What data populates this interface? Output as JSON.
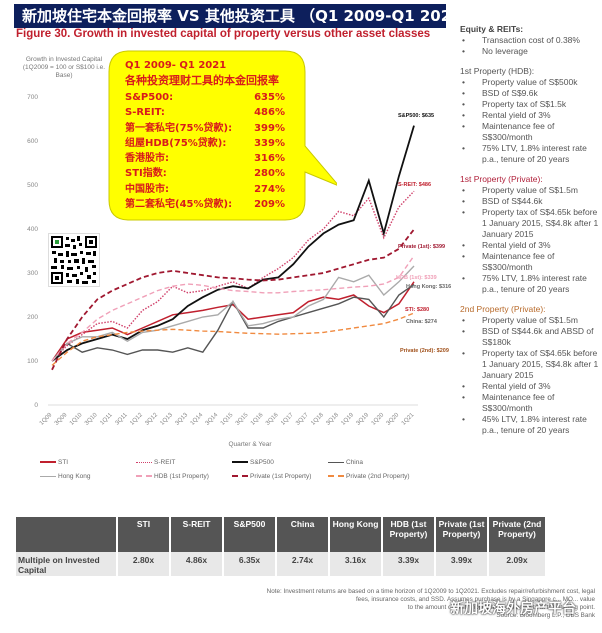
{
  "banner": {
    "title": "新加坡住宅本金回报率 VS 其他投资工具 （Q1 2009-Q1 2021）"
  },
  "figure": {
    "title": "Figure 30. Growth in invested capital of property versus other asset classes"
  },
  "callout": {
    "period": "Q1 2009- Q1 2021",
    "subtitle": "各种投资理财工具的本金回报率",
    "rows": [
      {
        "label": "S&P500:",
        "value": "635%"
      },
      {
        "label": "S-REIT:",
        "value": "486%"
      },
      {
        "label": "第一套私宅(75%贷款):",
        "value": "399%"
      },
      {
        "label": "组屋HDB(75%贷款):",
        "value": "339%"
      },
      {
        "label": "香港股市:",
        "value": "316%"
      },
      {
        "label": "STI指数:",
        "value": "280%"
      },
      {
        "label": "中国股市:",
        "value": "274%"
      },
      {
        "label": "第二套私宅(45%贷款):",
        "value": "209%"
      }
    ],
    "bg_color": "#ffff00",
    "text_color": "#d81b1b"
  },
  "chart_data": {
    "type": "line",
    "title": "Figure 30. Growth in invested capital of property versus other asset classes",
    "ylabel": "Growth in Invested Capital (1Q2009 = 100 or S$100 i.e. Base)",
    "xlabel": "Quarter & Year",
    "ylim": [
      0,
      700
    ],
    "yticks": [
      0,
      100,
      200,
      300,
      400,
      500,
      600,
      700
    ],
    "grid": false,
    "legend_position": "bottom",
    "x": [
      "1Q09",
      "3Q09",
      "1Q10",
      "3Q10",
      "1Q11",
      "3Q11",
      "1Q12",
      "3Q12",
      "1Q13",
      "3Q13",
      "1Q14",
      "3Q14",
      "1Q15",
      "3Q15",
      "1Q16",
      "3Q16",
      "1Q17",
      "3Q17",
      "1Q18",
      "3Q18",
      "1Q19",
      "3Q19",
      "1Q20",
      "3Q20",
      "1Q21"
    ],
    "series": [
      {
        "name": "STI",
        "color": "#c0202e",
        "style": "solid",
        "end_label": "STI: $280",
        "values": [
          100,
          150,
          165,
          170,
          175,
          160,
          175,
          190,
          205,
          210,
          215,
          222,
          228,
          195,
          200,
          205,
          210,
          235,
          245,
          240,
          250,
          225,
          210,
          230,
          280
        ]
      },
      {
        "name": "S-REIT",
        "color": "#d0406a",
        "style": "dotted",
        "end_label": "S-REIT: $486",
        "values": [
          100,
          135,
          160,
          185,
          190,
          175,
          215,
          235,
          270,
          255,
          260,
          270,
          280,
          265,
          290,
          310,
          335,
          375,
          400,
          440,
          430,
          470,
          380,
          450,
          486
        ]
      },
      {
        "name": "S&P500",
        "color": "#111111",
        "style": "solid",
        "end_label": "S&P500: $635",
        "values": [
          100,
          125,
          140,
          150,
          160,
          150,
          170,
          180,
          195,
          225,
          245,
          262,
          270,
          265,
          285,
          290,
          320,
          360,
          390,
          410,
          420,
          510,
          390,
          520,
          635
        ]
      },
      {
        "name": "China",
        "color": "#555555",
        "style": "solid",
        "end_label": "China: $274",
        "values": [
          100,
          140,
          120,
          130,
          125,
          115,
          125,
          125,
          120,
          130,
          120,
          170,
          235,
          175,
          175,
          190,
          200,
          210,
          220,
          230,
          245,
          240,
          200,
          250,
          274
        ]
      },
      {
        "name": "Hong Kong",
        "color": "#aaaaaa",
        "style": "solid",
        "end_label": "Hong Kong: $316",
        "values": [
          100,
          140,
          155,
          155,
          165,
          145,
          165,
          170,
          180,
          190,
          200,
          205,
          235,
          180,
          185,
          195,
          200,
          225,
          240,
          290,
          280,
          295,
          250,
          280,
          316
        ]
      },
      {
        "name": "HDB (1st Property)",
        "color": "#f0a0b8",
        "style": "dashed",
        "end_label": "HDB (1st): $339",
        "values": [
          100,
          140,
          165,
          195,
          215,
          230,
          245,
          260,
          270,
          275,
          272,
          265,
          260,
          258,
          255,
          255,
          258,
          260,
          262,
          265,
          268,
          270,
          275,
          290,
          339
        ]
      },
      {
        "name": "Private (1st Property)",
        "color": "#a01830",
        "style": "dashed",
        "end_label": "Private (1st): $399",
        "values": [
          80,
          150,
          200,
          240,
          260,
          275,
          290,
          300,
          305,
          300,
          295,
          290,
          288,
          285,
          283,
          285,
          290,
          295,
          300,
          310,
          320,
          330,
          335,
          355,
          399
        ]
      },
      {
        "name": "Private (2nd Property)",
        "color": "#f08a40",
        "style": "dashed",
        "end_label": "Private (2nd): $209",
        "values": [
          90,
          120,
          145,
          155,
          160,
          165,
          168,
          170,
          172,
          170,
          168,
          167,
          165,
          163,
          162,
          161,
          162,
          163,
          165,
          170,
          175,
          180,
          185,
          195,
          209
        ]
      }
    ]
  },
  "axis": {
    "y_title": "Growth in Invested Capital (1Q2009 = 100 or S$100 i.e. Base)",
    "x_title": "Quarter & Year"
  },
  "legend": {
    "row1": [
      "STI",
      "S-REIT",
      "S&P500",
      "China"
    ],
    "row2": [
      "Hong Kong",
      "HDB (1st Property)",
      "Private (1st Property)",
      "Private (2nd Property)"
    ]
  },
  "side": {
    "equity": {
      "title": "Equity & REITs:",
      "items": [
        "Transaction cost of 0.38%",
        "No leverage"
      ]
    },
    "hdb": {
      "title": "1st Property (HDB):",
      "items": [
        "Property value of S$500k",
        "BSD of S$9.6k",
        "Property tax of S$1.5k",
        "Rental yield of 3%",
        "Maintenance fee of S$300/month",
        "75% LTV, 1.8% interest rate p.a., tenure of 20 years"
      ]
    },
    "private1": {
      "title": "1st Property (Private):",
      "items": [
        "Property value of S$1.5m",
        "BSD of S$44.6k",
        "Property tax of S$4.65k before 1 January 2015, S$4.8k after 1 January 2015",
        "Rental yield of 3%",
        "Maintenance fee of S$300/month",
        "75% LTV, 1.8% interest rate p.a., tenure of 20 years"
      ]
    },
    "private2": {
      "title": "2nd Property (Private):",
      "items": [
        "Property value of S$1.5m",
        "BSD of S$44.6k and ABSD of S$180k",
        "Property tax of S$4.65k before 1 January 2015, S$4.8k after 1 January 2015",
        "Rental yield of 3%",
        "Maintenance fee of S$300/month",
        "45% LTV, 1.8% interest rate p.a., tenure of 20 years"
      ]
    }
  },
  "table": {
    "headers": [
      "",
      "STI",
      "S-REIT",
      "S&P500",
      "China",
      "Hong Kong",
      "HDB (1st Property)",
      "Private (1st Property)",
      "Private (2nd Property)"
    ],
    "row_label": "Multiple on Invested Capital",
    "values": [
      "2.80x",
      "4.86x",
      "6.35x",
      "2.74x",
      "3.16x",
      "3.39x",
      "3.99x",
      "2.09x"
    ]
  },
  "note": {
    "line1": "Note: Investment returns are based on a time horizon of 1Q2009 to 1Q2021. Excludes repair/refurbishment cost, legal",
    "line2": "fees, insurance costs, and SSD. Assumes purchase is by a Singapore c... MO... value",
    "line3": "to the amount of cash money an investor vests at the starting point.",
    "source": "Source: Bloomberg L.P., DBS Bank"
  },
  "watermark": {
    "text": "新加坡海外房产平台"
  }
}
